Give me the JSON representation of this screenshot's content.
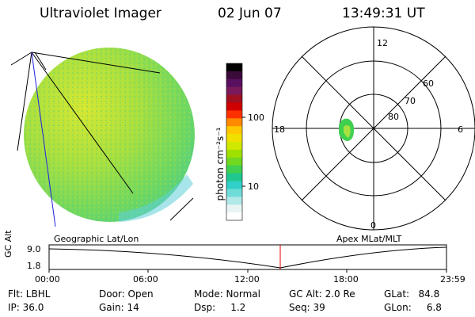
{
  "header": {
    "title": "Ultraviolet Imager",
    "date": "02 Jun 07",
    "time": "13:49:31 UT"
  },
  "left_panel": {
    "label": "Geographic Lat/Lon"
  },
  "colorbar": {
    "unit_label": "photon cm⁻²s⁻¹",
    "ticks": [
      "100",
      "10"
    ],
    "colors": [
      "#000000",
      "#3a0a3a",
      "#5a1060",
      "#7a1a5a",
      "#a01020",
      "#d00000",
      "#ff3000",
      "#ff8a00",
      "#ffc800",
      "#f0e000",
      "#d0e800",
      "#a0e000",
      "#70d820",
      "#40d050",
      "#20c890",
      "#30d0c8",
      "#70dcd8",
      "#b0e8e8",
      "#e8f4f4",
      "#ffffff"
    ]
  },
  "polar_panel": {
    "label": "Apex MLat/MLT",
    "mlt_labels": {
      "top": "12",
      "left": "18",
      "right": "6",
      "bottom": "0"
    },
    "mlat_labels": [
      "60",
      "70",
      "80"
    ]
  },
  "altitude_strip": {
    "axis_label": "GC Alt",
    "y_ticks": [
      "9.0",
      "1.8"
    ],
    "x_ticks": [
      "00:00",
      "06:00",
      "12:00",
      "18:00",
      "23:59"
    ],
    "current_marker_color": "#e00000"
  },
  "info": {
    "filter": "Flt: LBHL",
    "ip": "IP: 36.0",
    "door": "Door: Open",
    "gain": "Gain: 14",
    "mode": "Mode: Normal",
    "dsp": "Dsp:     1.2",
    "gc_alt": "GC Alt: 2.0 Re",
    "seq": "Seq: 39",
    "glat": "GLat:   84.8",
    "glon": "GLon:     6.8"
  }
}
